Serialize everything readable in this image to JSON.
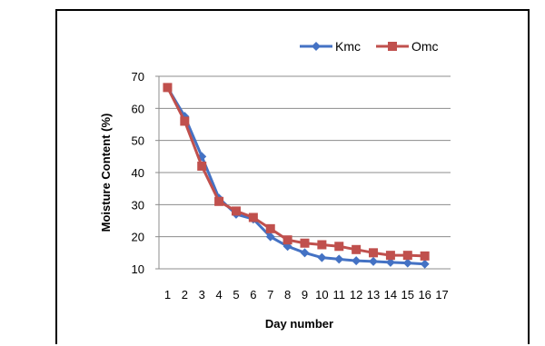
{
  "chart_data": {
    "type": "line",
    "title": "",
    "xlabel": "Day number",
    "ylabel": "Moisture Content (%)",
    "ylim": [
      10,
      70
    ],
    "yticks": [
      10,
      20,
      30,
      40,
      50,
      60,
      70
    ],
    "categories": [
      "1",
      "2",
      "3",
      "4",
      "5",
      "6",
      "7",
      "8",
      "9",
      "10",
      "11",
      "12",
      "13",
      "14",
      "15",
      "16",
      "17"
    ],
    "grid": "horizontal",
    "legend_position": "top-right",
    "series": [
      {
        "name": "Kmc",
        "color": "#4472C4",
        "marker": "diamond",
        "values": [
          66.5,
          57.5,
          45,
          32,
          27,
          25.5,
          20,
          17,
          15,
          13.5,
          13,
          12.5,
          12.3,
          12,
          11.8,
          11.5,
          null
        ]
      },
      {
        "name": "Omc",
        "color": "#C0504D",
        "marker": "square",
        "values": [
          66.5,
          56,
          42,
          31,
          28,
          26,
          22.5,
          19,
          18,
          17.5,
          17,
          16,
          15,
          14.2,
          14.2,
          14,
          null
        ]
      }
    ]
  }
}
